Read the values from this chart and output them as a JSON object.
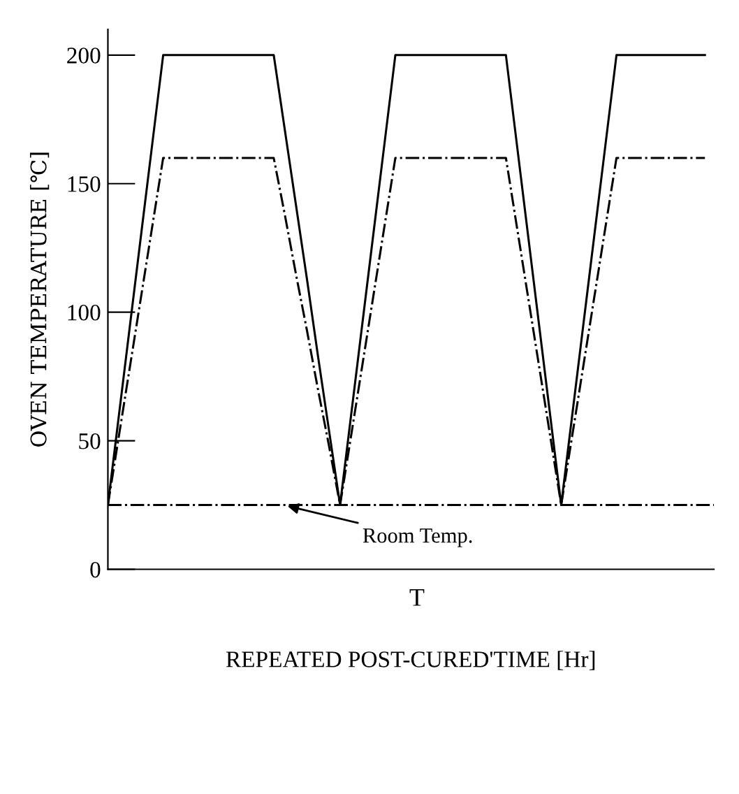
{
  "chart_data": {
    "type": "line",
    "xlabel": "REPEATED POST-CURED'TIME [Hr]",
    "ylabel": "OVEN TEMPERATURE [℃]",
    "annotations": [
      "T"
    ],
    "categories": [
      null,
      null,
      null,
      null,
      null,
      null,
      null,
      null,
      null,
      null,
      null,
      null,
      null,
      null,
      null,
      null,
      null,
      null,
      null,
      null,
      null,
      null,
      null,
      null,
      null,
      null,
      null,
      null,
      null,
      null,
      null,
      null,
      null,
      null,
      null,
      null,
      null,
      null,
      null,
      null,
      null,
      null,
      null,
      null,
      null,
      null,
      null,
      null,
      null,
      null,
      null,
      null,
      null,
      null,
      null
    ],
    "ylim": [
      0,
      210
    ],
    "yticks": [
      0,
      50,
      100,
      150,
      200
    ],
    "grid": false,
    "legend": false,
    "marker": "none",
    "series": [
      {
        "color": "#000000",
        "line_style": "solid",
        "values": [
          25,
          60,
          95,
          130,
          165,
          200,
          200,
          200,
          200,
          200,
          200,
          200,
          200,
          200,
          200,
          200,
          171,
          142,
          113,
          83,
          54,
          25,
          60,
          95,
          130,
          165,
          200,
          200,
          200,
          200,
          200,
          200,
          200,
          200,
          200,
          200,
          200,
          165,
          130,
          95,
          60,
          25,
          60,
          95,
          130,
          165,
          200,
          200,
          200,
          200,
          200,
          200,
          200,
          200,
          200
        ]
      },
      {
        "color": "#000000",
        "line_style": "dashdot",
        "values": [
          25,
          52,
          79,
          106,
          133,
          160,
          160,
          160,
          160,
          160,
          160,
          160,
          160,
          160,
          160,
          160,
          138,
          115,
          93,
          70,
          48,
          25,
          52,
          79,
          106,
          133,
          160,
          160,
          160,
          160,
          160,
          160,
          160,
          160,
          160,
          160,
          160,
          133,
          106,
          79,
          52,
          25,
          52,
          79,
          106,
          133,
          160,
          160,
          160,
          160,
          160,
          160,
          160,
          160,
          160
        ]
      }
    ],
    "ref_lines": [
      {
        "axis": "y",
        "value": 25,
        "label": "Room Temp.",
        "color": "#000000",
        "line_style": "dashdot"
      }
    ]
  }
}
